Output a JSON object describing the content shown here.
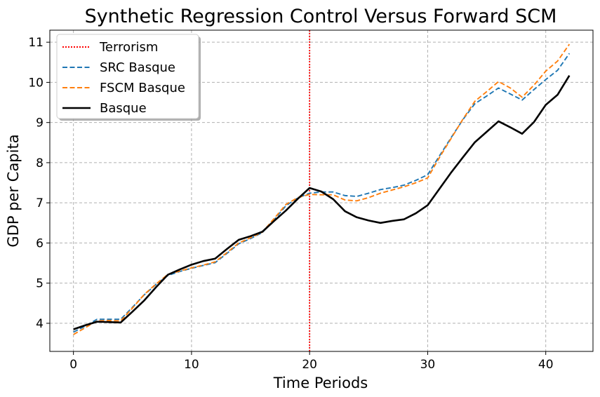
{
  "chart_data": {
    "type": "line",
    "title": "Synthetic Regression Control Versus Forward SCM",
    "xlabel": "Time Periods",
    "ylabel": "GDP per Capita",
    "xlim": [
      -2,
      44
    ],
    "ylim": [
      3.3,
      11.3
    ],
    "xticks": [
      0,
      10,
      20,
      30,
      40
    ],
    "yticks": [
      4,
      5,
      6,
      7,
      8,
      9,
      10,
      11
    ],
    "xtick_labels": [
      "0",
      "10",
      "20",
      "30",
      "40"
    ],
    "ytick_labels": [
      "4",
      "5",
      "6",
      "7",
      "8",
      "9",
      "10",
      "11"
    ],
    "grid": true,
    "legend_position": "upper-left",
    "intervention": {
      "name": "Terrorism",
      "x": 20,
      "color": "#ff0000"
    },
    "x": [
      0,
      1,
      2,
      3,
      4,
      5,
      6,
      7,
      8,
      9,
      10,
      11,
      12,
      13,
      14,
      15,
      16,
      17,
      18,
      19,
      20,
      21,
      22,
      23,
      24,
      25,
      26,
      27,
      28,
      29,
      30,
      31,
      32,
      33,
      34,
      35,
      36,
      37,
      38,
      39,
      40,
      41,
      42
    ],
    "series": [
      {
        "name": "SRC Basque",
        "color": "#1f77b4",
        "style": "dashed",
        "values": [
          3.78,
          3.93,
          4.1,
          4.1,
          4.1,
          4.4,
          4.71,
          4.97,
          5.19,
          5.29,
          5.37,
          5.44,
          5.51,
          5.74,
          5.98,
          6.11,
          6.26,
          6.58,
          6.93,
          7.12,
          7.24,
          7.27,
          7.27,
          7.18,
          7.16,
          7.24,
          7.33,
          7.38,
          7.44,
          7.56,
          7.7,
          8.17,
          8.63,
          9.08,
          9.47,
          9.66,
          9.86,
          9.71,
          9.56,
          9.82,
          10.07,
          10.3,
          10.72
        ]
      },
      {
        "name": "FSCM Basque",
        "color": "#ff7f0e",
        "style": "dashed",
        "values": [
          3.72,
          3.89,
          4.06,
          4.07,
          4.06,
          4.38,
          4.72,
          4.98,
          5.22,
          5.3,
          5.38,
          5.45,
          5.53,
          5.76,
          6.0,
          6.13,
          6.27,
          6.61,
          6.96,
          7.13,
          7.21,
          7.2,
          7.2,
          7.07,
          7.05,
          7.13,
          7.24,
          7.32,
          7.4,
          7.5,
          7.62,
          8.13,
          8.61,
          9.09,
          9.53,
          9.77,
          10.02,
          9.86,
          9.63,
          9.93,
          10.28,
          10.53,
          10.95
        ]
      },
      {
        "name": "Basque",
        "color": "#000000",
        "style": "solid",
        "values": [
          3.85,
          3.95,
          4.04,
          4.03,
          4.02,
          4.29,
          4.57,
          4.9,
          5.21,
          5.34,
          5.46,
          5.55,
          5.61,
          5.85,
          6.08,
          6.17,
          6.28,
          6.55,
          6.81,
          7.1,
          7.37,
          7.28,
          7.09,
          6.79,
          6.64,
          6.56,
          6.5,
          6.55,
          6.59,
          6.74,
          6.94,
          7.35,
          7.76,
          8.14,
          8.51,
          8.77,
          9.03,
          8.88,
          8.72,
          9.01,
          9.44,
          9.69,
          10.17
        ]
      }
    ]
  }
}
